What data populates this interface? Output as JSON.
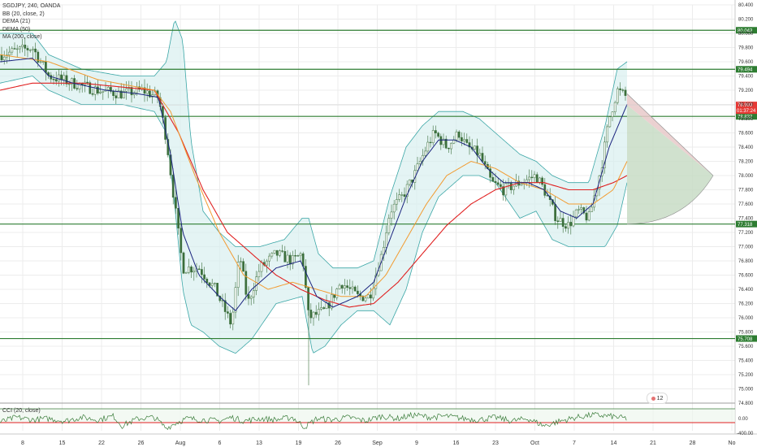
{
  "symbol_title": "SGDJPY, 240, OANDA",
  "indicators": [
    "BB (20, close, 2)",
    "DEMA (21)",
    "DEMA (50)",
    "MA (200, close)"
  ],
  "oscillator_label": "CCI (20, close)",
  "badge_text": "12",
  "colors": {
    "grid": "#ececec",
    "candle": "#3b6e3b",
    "bb_band": "#3aa6a6",
    "bb_fill": "#d8efef",
    "dema21": "#1a237e",
    "dema50": "#f29b30",
    "ma200": "#e02020",
    "level": "#2e7d32",
    "price_tag": "#e53935",
    "triangle_fill": "#e8c9c9",
    "triangle_lower": "#c8dcc6",
    "osc_line": "#3b7d3b",
    "osc_level": "#e02020"
  },
  "chart_data": {
    "type": "candlestick",
    "y_ticks": [
      "80.400",
      "80.200",
      "80.000",
      "79.800",
      "79.600",
      "79.400",
      "79.200",
      "79.000",
      "78.800",
      "78.600",
      "78.400",
      "78.200",
      "78.000",
      "77.800",
      "77.600",
      "77.400",
      "77.200",
      "77.000",
      "76.800",
      "76.600",
      "76.400",
      "76.200",
      "76.000",
      "75.800",
      "75.600",
      "75.400",
      "75.200",
      "75.000",
      "74.800"
    ],
    "ylim": [
      74.8,
      80.4
    ],
    "x_ticks": [
      "8",
      "15",
      "22",
      "26",
      "Aug",
      "6",
      "13",
      "19",
      "26",
      "Sep",
      "9",
      "16",
      "23",
      "Oct",
      "7",
      "14",
      "21",
      "28",
      "No"
    ],
    "horizontal_levels": [
      {
        "value": 80.043,
        "label": "80.043"
      },
      {
        "value": 79.494,
        "label": "79.494"
      },
      {
        "value": 78.832,
        "label": "78.832"
      },
      {
        "value": 77.318,
        "label": "77.318"
      },
      {
        "value": 75.708,
        "label": "75.708"
      }
    ],
    "current_price": {
      "value": 78.993,
      "label": "78.993",
      "countdown": "01:37:24"
    },
    "series_anchors": {
      "close": [
        [
          0,
          79.7
        ],
        [
          40,
          79.8
        ],
        [
          60,
          79.4
        ],
        [
          90,
          79.3
        ],
        [
          120,
          79.2
        ],
        [
          150,
          79.15
        ],
        [
          175,
          79.2
        ],
        [
          195,
          79.1
        ],
        [
          205,
          78.5
        ],
        [
          215,
          77.6
        ],
        [
          225,
          76.7
        ],
        [
          245,
          76.7
        ],
        [
          265,
          76.4
        ],
        [
          285,
          75.9
        ],
        [
          295,
          76.9
        ],
        [
          305,
          76.2
        ],
        [
          320,
          76.7
        ],
        [
          340,
          76.9
        ],
        [
          360,
          76.8
        ],
        [
          372,
          76.9
        ],
        [
          380,
          76.0
        ],
        [
          400,
          76.1
        ],
        [
          420,
          76.5
        ],
        [
          440,
          76.3
        ],
        [
          455,
          76.3
        ],
        [
          470,
          76.9
        ],
        [
          480,
          77.5
        ],
        [
          495,
          77.7
        ],
        [
          510,
          78.0
        ],
        [
          525,
          78.4
        ],
        [
          535,
          78.6
        ],
        [
          550,
          78.4
        ],
        [
          565,
          78.6
        ],
        [
          575,
          78.4
        ],
        [
          590,
          78.3
        ],
        [
          605,
          77.9
        ],
        [
          620,
          77.8
        ],
        [
          640,
          77.9
        ],
        [
          660,
          78.0
        ],
        [
          670,
          77.8
        ],
        [
          685,
          77.4
        ],
        [
          700,
          77.3
        ],
        [
          712,
          77.5
        ],
        [
          725,
          77.4
        ],
        [
          740,
          78.1
        ],
        [
          750,
          78.8
        ],
        [
          760,
          79.2
        ],
        [
          772,
          79.1
        ]
      ],
      "dema21": [
        [
          0,
          79.6
        ],
        [
          40,
          79.65
        ],
        [
          60,
          79.4
        ],
        [
          90,
          79.3
        ],
        [
          130,
          79.2
        ],
        [
          170,
          79.15
        ],
        [
          195,
          79.1
        ],
        [
          210,
          78.3
        ],
        [
          225,
          77.2
        ],
        [
          245,
          76.6
        ],
        [
          270,
          76.3
        ],
        [
          290,
          76.1
        ],
        [
          310,
          76.4
        ],
        [
          340,
          76.7
        ],
        [
          370,
          76.8
        ],
        [
          390,
          76.3
        ],
        [
          410,
          76.15
        ],
        [
          440,
          76.3
        ],
        [
          460,
          76.5
        ],
        [
          480,
          77.1
        ],
        [
          500,
          77.7
        ],
        [
          520,
          78.2
        ],
        [
          540,
          78.5
        ],
        [
          560,
          78.5
        ],
        [
          580,
          78.4
        ],
        [
          600,
          78.1
        ],
        [
          620,
          77.9
        ],
        [
          650,
          77.9
        ],
        [
          670,
          77.8
        ],
        [
          690,
          77.5
        ],
        [
          710,
          77.4
        ],
        [
          730,
          77.6
        ],
        [
          750,
          78.4
        ],
        [
          772,
          79.0
        ]
      ],
      "dema50": [
        [
          0,
          79.7
        ],
        [
          60,
          79.6
        ],
        [
          120,
          79.35
        ],
        [
          190,
          79.2
        ],
        [
          210,
          78.9
        ],
        [
          240,
          78.0
        ],
        [
          270,
          77.2
        ],
        [
          300,
          76.6
        ],
        [
          330,
          76.4
        ],
        [
          360,
          76.5
        ],
        [
          390,
          76.4
        ],
        [
          420,
          76.3
        ],
        [
          450,
          76.3
        ],
        [
          475,
          76.6
        ],
        [
          500,
          77.1
        ],
        [
          525,
          77.6
        ],
        [
          550,
          78.0
        ],
        [
          580,
          78.2
        ],
        [
          610,
          78.1
        ],
        [
          640,
          77.9
        ],
        [
          670,
          77.8
        ],
        [
          700,
          77.6
        ],
        [
          730,
          77.6
        ],
        [
          755,
          77.8
        ],
        [
          772,
          78.2
        ]
      ],
      "ma200": [
        [
          0,
          79.2
        ],
        [
          40,
          79.3
        ],
        [
          100,
          79.3
        ],
        [
          190,
          79.2
        ],
        [
          220,
          78.6
        ],
        [
          250,
          77.8
        ],
        [
          280,
          77.2
        ],
        [
          310,
          76.9
        ],
        [
          340,
          76.6
        ],
        [
          370,
          76.4
        ],
        [
          400,
          76.25
        ],
        [
          430,
          76.15
        ],
        [
          460,
          76.2
        ],
        [
          490,
          76.5
        ],
        [
          520,
          76.9
        ],
        [
          550,
          77.3
        ],
        [
          580,
          77.6
        ],
        [
          610,
          77.8
        ],
        [
          640,
          77.9
        ],
        [
          670,
          77.9
        ],
        [
          700,
          77.8
        ],
        [
          730,
          77.8
        ],
        [
          755,
          77.9
        ],
        [
          772,
          78.0
        ]
      ],
      "bb_upper": [
        [
          0,
          80.0
        ],
        [
          40,
          80.0
        ],
        [
          60,
          79.7
        ],
        [
          100,
          79.5
        ],
        [
          150,
          79.4
        ],
        [
          190,
          79.4
        ],
        [
          205,
          79.6
        ],
        [
          215,
          80.2
        ],
        [
          225,
          79.9
        ],
        [
          235,
          78.5
        ],
        [
          250,
          77.5
        ],
        [
          270,
          77.2
        ],
        [
          290,
          77.0
        ],
        [
          320,
          77.0
        ],
        [
          350,
          77.1
        ],
        [
          372,
          77.4
        ],
        [
          380,
          77.4
        ],
        [
          392,
          76.9
        ],
        [
          410,
          76.7
        ],
        [
          440,
          76.7
        ],
        [
          460,
          76.8
        ],
        [
          480,
          77.7
        ],
        [
          500,
          78.4
        ],
        [
          520,
          78.7
        ],
        [
          540,
          78.9
        ],
        [
          570,
          78.9
        ],
        [
          590,
          78.8
        ],
        [
          610,
          78.6
        ],
        [
          640,
          78.3
        ],
        [
          660,
          78.2
        ],
        [
          680,
          78.0
        ],
        [
          700,
          77.9
        ],
        [
          725,
          77.9
        ],
        [
          745,
          78.7
        ],
        [
          760,
          79.5
        ],
        [
          772,
          79.6
        ]
      ],
      "bb_lower": [
        [
          0,
          79.3
        ],
        [
          40,
          79.4
        ],
        [
          60,
          79.2
        ],
        [
          100,
          79.0
        ],
        [
          150,
          79.0
        ],
        [
          190,
          78.9
        ],
        [
          205,
          78.6
        ],
        [
          215,
          77.6
        ],
        [
          225,
          76.4
        ],
        [
          235,
          75.9
        ],
        [
          250,
          75.8
        ],
        [
          270,
          75.6
        ],
        [
          290,
          75.5
        ],
        [
          310,
          75.7
        ],
        [
          340,
          76.2
        ],
        [
          372,
          76.3
        ],
        [
          385,
          75.5
        ],
        [
          400,
          75.6
        ],
        [
          420,
          75.9
        ],
        [
          440,
          76.1
        ],
        [
          460,
          76.1
        ],
        [
          480,
          75.9
        ],
        [
          500,
          76.4
        ],
        [
          520,
          77.2
        ],
        [
          540,
          77.7
        ],
        [
          570,
          78.0
        ],
        [
          590,
          78.0
        ],
        [
          610,
          77.9
        ],
        [
          640,
          77.4
        ],
        [
          660,
          77.5
        ],
        [
          680,
          77.1
        ],
        [
          700,
          77.0
        ],
        [
          725,
          77.0
        ],
        [
          745,
          77.0
        ],
        [
          760,
          77.3
        ],
        [
          772,
          77.9
        ]
      ],
      "oscillator": [
        [
          0,
          0.35
        ],
        [
          20,
          0.55
        ],
        [
          40,
          0.45
        ],
        [
          60,
          0.5
        ],
        [
          80,
          0.4
        ],
        [
          100,
          0.55
        ],
        [
          120,
          0.45
        ],
        [
          140,
          0.6
        ],
        [
          150,
          0.2
        ],
        [
          170,
          0.5
        ],
        [
          190,
          0.55
        ],
        [
          205,
          0.1
        ],
        [
          215,
          0.3
        ],
        [
          230,
          0.5
        ],
        [
          250,
          0.45
        ],
        [
          270,
          0.4
        ],
        [
          285,
          0.55
        ],
        [
          300,
          0.4
        ],
        [
          320,
          0.5
        ],
        [
          340,
          0.45
        ],
        [
          360,
          0.55
        ],
        [
          375,
          0.15
        ],
        [
          390,
          0.5
        ],
        [
          410,
          0.45
        ],
        [
          430,
          0.55
        ],
        [
          450,
          0.4
        ],
        [
          470,
          0.6
        ],
        [
          490,
          0.5
        ],
        [
          510,
          0.65
        ],
        [
          530,
          0.55
        ],
        [
          550,
          0.6
        ],
        [
          570,
          0.5
        ],
        [
          590,
          0.45
        ],
        [
          610,
          0.55
        ],
        [
          630,
          0.4
        ],
        [
          650,
          0.5
        ],
        [
          670,
          0.2
        ],
        [
          690,
          0.4
        ],
        [
          710,
          0.55
        ],
        [
          730,
          0.65
        ],
        [
          750,
          0.6
        ],
        [
          772,
          0.5
        ]
      ]
    }
  }
}
